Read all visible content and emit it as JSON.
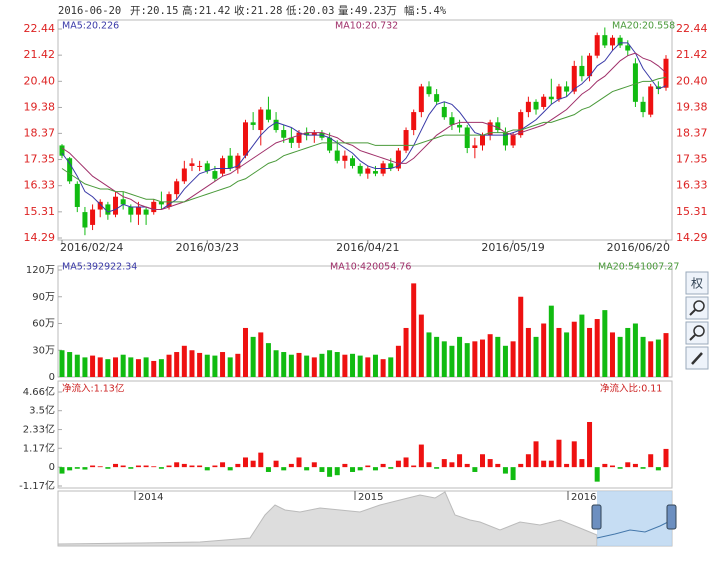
{
  "header": {
    "date": "2016-06-20",
    "open": "开:20.15",
    "high": "高:21.42",
    "close": "收:21.28",
    "low": "低:20.03",
    "volume": "量:49.23万",
    "range": "幅:5.4%"
  },
  "toolbar": {
    "adjust": "权"
  },
  "chart_data": [
    {
      "type": "candlestick",
      "categories": [
        "2016/02/24",
        null,
        null,
        null,
        null,
        null,
        null,
        null,
        null,
        null,
        null,
        null,
        null,
        null,
        null,
        null,
        null,
        null,
        null,
        "2016/03/23",
        null,
        null,
        null,
        null,
        null,
        null,
        null,
        null,
        null,
        null,
        null,
        null,
        null,
        null,
        null,
        null,
        null,
        null,
        null,
        null,
        "2016/04/21",
        null,
        null,
        null,
        null,
        null,
        null,
        null,
        null,
        null,
        null,
        null,
        null,
        null,
        null,
        null,
        null,
        null,
        null,
        "2016/05/19",
        null,
        null,
        null,
        null,
        null,
        null,
        null,
        null,
        null,
        null,
        null,
        null,
        null,
        null,
        null,
        null,
        null,
        null,
        null,
        "2016/06/20"
      ],
      "open": [
        17.9,
        17.4,
        16.4,
        15.3,
        14.8,
        15.4,
        15.6,
        15.2,
        15.8,
        15.5,
        15.2,
        15.4,
        15.3,
        15.7,
        15.5,
        16.0,
        16.5,
        17.1,
        17.1,
        17.2,
        16.9,
        16.8,
        17.5,
        17.0,
        17.5,
        18.8,
        18.5,
        19.3,
        18.9,
        18.5,
        18.2,
        18.0,
        18.4,
        18.3,
        18.4,
        18.2,
        17.7,
        17.3,
        17.4,
        17.1,
        16.8,
        16.9,
        16.8,
        17.2,
        17.0,
        17.7,
        18.5,
        19.2,
        20.2,
        19.9,
        19.4,
        19.0,
        18.7,
        18.6,
        17.8,
        17.9,
        18.3,
        18.8,
        18.4,
        17.9,
        18.3,
        19.2,
        19.6,
        19.4,
        19.8,
        19.7,
        20.2,
        20.0,
        21.0,
        20.6,
        21.4,
        22.2,
        21.8,
        22.1,
        21.8,
        21.1,
        19.6,
        19.1,
        20.2,
        20.15
      ],
      "high": [
        17.95,
        17.45,
        16.5,
        15.5,
        15.6,
        15.8,
        15.7,
        16.1,
        16.1,
        15.6,
        15.7,
        15.5,
        15.8,
        16.1,
        16.1,
        16.6,
        17.3,
        17.4,
        17.3,
        17.3,
        17.1,
        17.5,
        17.8,
        17.6,
        18.9,
        19.2,
        19.4,
        19.8,
        19.2,
        18.7,
        18.6,
        18.5,
        18.6,
        18.5,
        18.5,
        18.4,
        18.1,
        17.7,
        17.5,
        17.2,
        17.1,
        17.1,
        17.3,
        17.4,
        17.8,
        18.6,
        19.3,
        20.3,
        20.4,
        20.1,
        19.6,
        19.2,
        18.9,
        18.7,
        18.2,
        18.4,
        18.9,
        19.0,
        18.6,
        18.4,
        19.3,
        19.8,
        19.7,
        19.9,
        20.5,
        20.3,
        20.4,
        21.2,
        21.4,
        21.5,
        22.3,
        22.5,
        22.2,
        22.2,
        22.0,
        21.3,
        19.8,
        20.3,
        20.4,
        21.42
      ],
      "low": [
        17.4,
        16.4,
        15.3,
        14.4,
        14.6,
        15.1,
        15.0,
        15.1,
        15.4,
        14.9,
        14.8,
        14.8,
        15.2,
        15.4,
        15.4,
        15.8,
        16.4,
        16.9,
        16.9,
        16.8,
        16.5,
        16.7,
        16.9,
        16.8,
        17.4,
        18.5,
        17.9,
        18.8,
        18.4,
        18.0,
        17.8,
        17.8,
        18.1,
        18.0,
        18.1,
        17.6,
        17.2,
        17.0,
        17.0,
        16.7,
        16.6,
        16.7,
        16.7,
        16.9,
        16.9,
        17.6,
        18.3,
        19.0,
        19.8,
        19.5,
        18.9,
        18.5,
        18.4,
        17.6,
        17.4,
        17.7,
        18.1,
        18.4,
        17.7,
        17.8,
        18.2,
        19.0,
        19.1,
        19.3,
        19.5,
        19.6,
        19.8,
        19.9,
        20.4,
        20.4,
        21.3,
        21.7,
        21.6,
        21.7,
        21.4,
        19.4,
        19.0,
        19.0,
        19.9,
        20.03
      ],
      "close": [
        17.5,
        16.5,
        15.5,
        14.7,
        15.4,
        15.7,
        15.2,
        15.9,
        15.6,
        15.2,
        15.5,
        15.2,
        15.7,
        15.6,
        16.0,
        16.5,
        17.0,
        17.2,
        17.1,
        16.9,
        16.6,
        17.4,
        17.0,
        17.5,
        18.8,
        18.7,
        19.3,
        18.9,
        18.5,
        18.2,
        18.0,
        18.4,
        18.3,
        18.4,
        18.2,
        17.7,
        17.3,
        17.5,
        17.1,
        16.8,
        17.0,
        16.8,
        17.2,
        17.0,
        17.7,
        18.5,
        19.2,
        20.2,
        19.9,
        19.6,
        19.0,
        18.7,
        18.6,
        17.8,
        17.9,
        18.3,
        18.8,
        18.5,
        17.9,
        18.3,
        19.2,
        19.6,
        19.3,
        19.8,
        19.7,
        20.2,
        20.0,
        21.0,
        20.6,
        21.4,
        22.2,
        21.8,
        22.1,
        21.8,
        21.6,
        19.6,
        19.2,
        20.2,
        20.1,
        21.28
      ],
      "up_color": "#ee1111",
      "down_color": "#11bb11",
      "ylim": [
        14.29,
        22.44
      ],
      "yticks": [
        14.29,
        15.31,
        16.33,
        17.35,
        18.37,
        19.38,
        {
          "value": 20.4,
          "label": "20.40"
        },
        21.42,
        22.44
      ],
      "series": [
        {
          "name": "MA5:20.226",
          "color": "#3a3aa8",
          "values": [
            17.6,
            17.2,
            16.7,
            16.1,
            15.9,
            15.6,
            15.3,
            15.4,
            15.6,
            15.5,
            15.5,
            15.5,
            15.4,
            15.4,
            15.6,
            15.8,
            16.2,
            16.5,
            16.8,
            16.9,
            17.0,
            17.0,
            17.0,
            17.1,
            17.5,
            17.9,
            18.3,
            18.6,
            18.8,
            18.7,
            18.6,
            18.4,
            18.3,
            18.3,
            18.3,
            18.2,
            18.0,
            17.8,
            17.6,
            17.3,
            17.1,
            17.0,
            17.0,
            17.0,
            17.1,
            17.4,
            17.9,
            18.5,
            19.1,
            19.5,
            19.6,
            19.5,
            19.2,
            18.8,
            18.4,
            18.3,
            18.3,
            18.3,
            18.3,
            18.4,
            18.5,
            18.7,
            18.9,
            19.2,
            19.5,
            19.7,
            19.8,
            20.1,
            20.3,
            20.6,
            21.0,
            21.2,
            21.6,
            21.9,
            21.9,
            21.5,
            20.9,
            20.5,
            20.1,
            20.23
          ]
        },
        {
          "name": "MA10:20.732",
          "color": "#a0306a",
          "values": [
            17.8,
            17.6,
            17.3,
            17.0,
            16.7,
            16.5,
            16.3,
            16.1,
            15.9,
            15.8,
            15.6,
            15.5,
            15.4,
            15.4,
            15.5,
            15.6,
            15.7,
            15.9,
            16.1,
            16.3,
            16.5,
            16.7,
            16.8,
            17.0,
            17.2,
            17.4,
            17.6,
            17.8,
            18.0,
            18.1,
            18.2,
            18.3,
            18.4,
            18.4,
            18.4,
            18.3,
            18.2,
            18.0,
            17.9,
            17.7,
            17.6,
            17.5,
            17.4,
            17.3,
            17.2,
            17.2,
            17.4,
            17.7,
            18.0,
            18.3,
            18.5,
            18.7,
            18.8,
            18.8,
            18.8,
            18.8,
            18.7,
            18.6,
            18.4,
            18.3,
            18.4,
            18.5,
            18.6,
            18.7,
            18.9,
            19.1,
            19.3,
            19.6,
            19.9,
            20.1,
            20.4,
            20.6,
            20.9,
            21.2,
            21.4,
            21.5,
            21.3,
            21.2,
            21.0,
            20.73
          ]
        },
        {
          "name": "MA20:20.558",
          "color": "#4a9a3a",
          "values": [
            17.0,
            16.8,
            16.6,
            16.4,
            16.3,
            16.2,
            16.2,
            16.1,
            16.1,
            16.0,
            15.9,
            15.8,
            15.8,
            15.7,
            15.7,
            15.7,
            15.7,
            15.8,
            15.9,
            16.0,
            16.1,
            16.2,
            16.3,
            16.5,
            16.6,
            16.8,
            17.0,
            17.2,
            17.3,
            17.5,
            17.6,
            17.7,
            17.8,
            17.9,
            18.0,
            18.0,
            18.0,
            18.0,
            18.0,
            18.0,
            18.0,
            17.9,
            17.9,
            17.9,
            17.9,
            17.9,
            17.9,
            18.0,
            18.1,
            18.2,
            18.3,
            18.3,
            18.3,
            18.3,
            18.3,
            18.3,
            18.4,
            18.4,
            18.4,
            18.5,
            18.5,
            18.6,
            18.7,
            18.8,
            18.8,
            18.9,
            19.0,
            19.1,
            19.3,
            19.4,
            19.6,
            19.8,
            20.0,
            20.1,
            20.2,
            20.3,
            20.4,
            20.4,
            20.5,
            20.56
          ]
        }
      ]
    },
    {
      "type": "bar",
      "values": [
        30,
        28,
        25,
        22,
        24,
        22,
        20,
        22,
        25,
        22,
        20,
        22,
        18,
        20,
        25,
        28,
        35,
        30,
        27,
        25,
        24,
        28,
        22,
        26,
        55,
        45,
        50,
        38,
        30,
        28,
        25,
        27,
        24,
        22,
        26,
        30,
        28,
        25,
        26,
        24,
        22,
        25,
        20,
        22,
        35,
        55,
        105,
        70,
        50,
        45,
        40,
        35,
        45,
        38,
        40,
        42,
        48,
        45,
        35,
        40,
        90,
        55,
        45,
        60,
        80,
        55,
        50,
        62,
        70,
        55,
        65,
        75,
        50,
        45,
        55,
        60,
        45,
        40,
        42,
        49.23
      ],
      "ylim": [
        0,
        120
      ],
      "yticks": [
        0,
        {
          "value": 30,
          "label": "30万"
        },
        {
          "value": 60,
          "label": "60万"
        },
        {
          "value": 90,
          "label": "90万"
        },
        {
          "value": 120,
          "label": "120万"
        }
      ],
      "legend": [
        {
          "name": "MA5:392922.34",
          "color": "#3a3aa8"
        },
        {
          "name": "MA10:420054.76",
          "color": "#a0306a"
        },
        {
          "name": "MA20:541007.27",
          "color": "#4a9a3a"
        }
      ]
    },
    {
      "type": "bar",
      "values": [
        -0.4,
        -0.2,
        -0.1,
        -0.15,
        0.1,
        0.05,
        -0.1,
        0.2,
        0.1,
        -0.1,
        0.1,
        0.1,
        0.05,
        -0.1,
        0.1,
        0.3,
        0.2,
        0.1,
        0.1,
        -0.2,
        0.1,
        0.3,
        -0.2,
        0.2,
        0.6,
        0.4,
        0.9,
        -0.3,
        0.4,
        -0.2,
        0.2,
        0.6,
        -0.2,
        0.3,
        -0.3,
        -0.6,
        -0.5,
        0.2,
        -0.3,
        -0.2,
        0.1,
        -0.2,
        0.2,
        -0.1,
        0.4,
        0.6,
        0.1,
        1.4,
        0.3,
        -0.1,
        0.5,
        0.3,
        0.8,
        0.2,
        -0.3,
        0.8,
        0.5,
        0.2,
        -0.4,
        -0.8,
        0.2,
        0.8,
        1.6,
        0.4,
        0.4,
        1.7,
        0.2,
        1.6,
        0.5,
        2.8,
        -0.9,
        0.2,
        0.1,
        -0.1,
        0.3,
        0.2,
        -0.1,
        0.8,
        -0.2,
        1.13
      ],
      "up_color": "#ee1111",
      "down_color": "#11bb11",
      "ylim": [
        -1.17,
        4.66
      ],
      "yticks": [
        {
          "value": -1.17,
          "label": "-1.17亿"
        },
        0,
        {
          "value": 1.17,
          "label": "1.17亿"
        },
        {
          "value": 2.33,
          "label": "2.33亿"
        },
        {
          "value": 3.5,
          "label": "3.5亿"
        },
        {
          "value": 4.66,
          "label": "4.66亿"
        }
      ],
      "legend": [
        {
          "name": "净流入:1.13亿",
          "color": "#cc2222"
        },
        {
          "name": "净流入比:0.11",
          "color": "#cc2222"
        }
      ]
    }
  ],
  "navigator": {
    "years": [
      "2014",
      "2015",
      "2016"
    ]
  }
}
